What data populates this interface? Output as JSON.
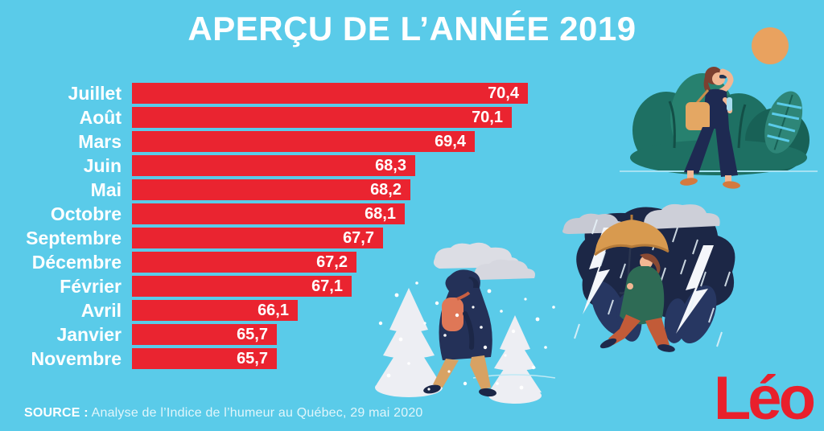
{
  "title": "APERÇU DE L’ANNÉE 2019",
  "chart_data": {
    "type": "bar",
    "orientation": "horizontal",
    "title": "APERÇU DE L’ANNÉE 2019",
    "categories": [
      "Juillet",
      "Août",
      "Mars",
      "Juin",
      "Mai",
      "Octobre",
      "Septembre",
      "Décembre",
      "Février",
      "Avril",
      "Janvier",
      "Novembre"
    ],
    "values": [
      70.4,
      70.1,
      69.4,
      68.3,
      68.2,
      68.1,
      67.7,
      67.2,
      67.1,
      66.1,
      65.7,
      65.7
    ],
    "display_values": [
      "70,4",
      "70,1",
      "69,4",
      "68,3",
      "68,2",
      "68,1",
      "67,7",
      "67,2",
      "67,1",
      "66,1",
      "65,7",
      "65,7"
    ],
    "xlim": [
      63,
      70.4
    ],
    "value_label_position": "inside-end",
    "sorted": "descending",
    "grid": false,
    "legend": false,
    "bar_color": "#EA2430",
    "label_color": "#FFFFFF"
  },
  "source": {
    "label": "SOURCE :",
    "text": "Analyse de l’Indice de l’humeur au Québec, 29 mai 2020"
  },
  "logo": {
    "text": "Léo",
    "color": "#E8202C"
  },
  "colors": {
    "background": "#5ACBE9",
    "bar": "#EA2430",
    "text": "#FFFFFF",
    "plant_teal": "#1E7063",
    "sun_orange": "#E9A25F",
    "storm_navy": "#1C2746",
    "snow_white": "#EDEEF3"
  },
  "illustrations": [
    {
      "name": "summer-scene",
      "description": "Femme marchant au soleil parmi des plantes tropicales"
    },
    {
      "name": "rain-scene",
      "description": "Personne sous un parapluie dans un orage avec éclairs"
    },
    {
      "name": "winter-scene",
      "description": "Personne marchant sous la neige entre des sapins enneigés"
    }
  ]
}
